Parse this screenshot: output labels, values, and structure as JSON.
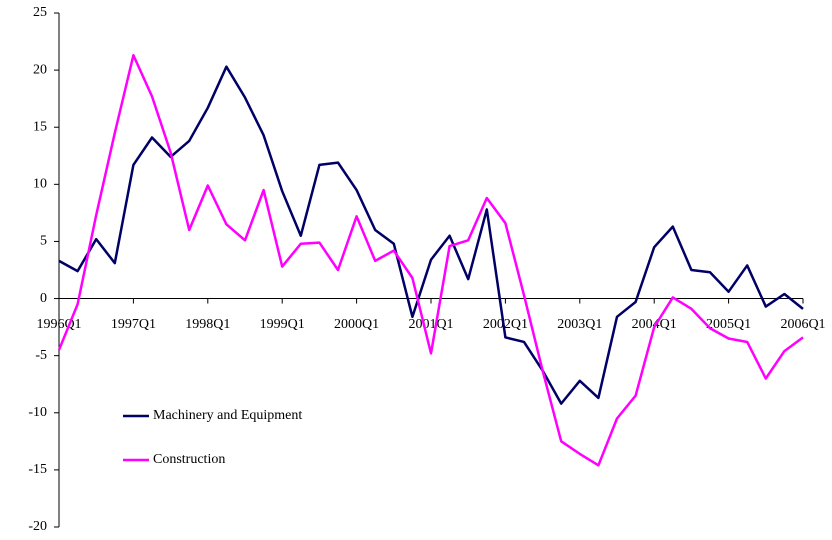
{
  "chart_data": {
    "type": "line",
    "categories": [
      "1996Q1",
      null,
      null,
      null,
      "1997Q1",
      null,
      null,
      null,
      "1998Q1",
      null,
      null,
      null,
      "1999Q1",
      null,
      null,
      null,
      "2000Q1",
      null,
      null,
      null,
      "2001Q1",
      null,
      null,
      null,
      "2002Q1",
      null,
      null,
      null,
      "2003Q1",
      null,
      null,
      null,
      "2004Q1",
      null,
      null,
      null,
      "2005Q1",
      null,
      null,
      null,
      "2006Q1"
    ],
    "series": [
      {
        "name": "Machinery and Equipment",
        "color": "#000066",
        "values": [
          3.3,
          2.4,
          5.2,
          3.1,
          11.7,
          14.1,
          12.4,
          13.8,
          16.7,
          20.3,
          17.6,
          14.3,
          9.4,
          5.5,
          11.7,
          11.9,
          9.5,
          6.0,
          4.8,
          -1.6,
          3.4,
          5.5,
          1.7,
          7.8,
          -3.4,
          -3.8,
          -6.3,
          -9.2,
          -7.2,
          -8.7,
          -1.6,
          -0.3,
          4.5,
          6.3,
          2.5,
          2.3,
          0.6,
          2.9,
          -0.7,
          0.4,
          -0.9
        ]
      },
      {
        "name": "Construction",
        "color": "#ff00ff",
        "values": [
          -4.5,
          -0.5,
          7.3,
          14.5,
          21.3,
          17.7,
          12.8,
          6.0,
          9.9,
          6.5,
          5.1,
          9.5,
          2.8,
          4.8,
          4.9,
          2.5,
          7.2,
          3.3,
          4.2,
          1.8,
          -4.8,
          4.6,
          5.1,
          8.8,
          6.6,
          0.3,
          -6.3,
          -12.5,
          -13.6,
          -14.6,
          -10.5,
          -8.5,
          -2.5,
          0.1,
          -0.9,
          -2.6,
          -3.5,
          -3.8,
          -7.0,
          -4.6,
          -3.4
        ]
      }
    ],
    "ylim": [
      -20,
      25
    ],
    "yticks": [
      -20,
      -15,
      -10,
      -5,
      0,
      5,
      10,
      15,
      20,
      25
    ],
    "grid": false,
    "legend": "lower-left"
  }
}
